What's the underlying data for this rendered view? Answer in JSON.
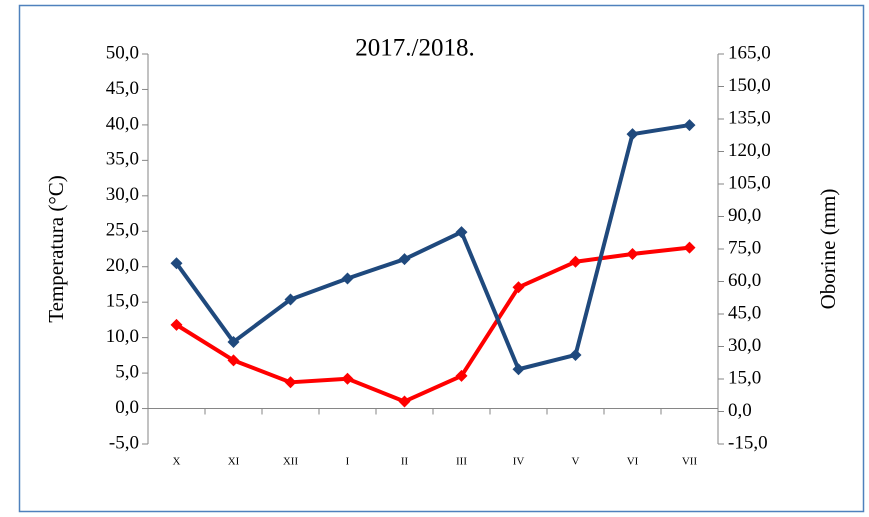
{
  "chart_data": {
    "type": "line",
    "title": "2017./2018.",
    "categories": [
      "X",
      "XI",
      "XII",
      "I",
      "II",
      "III",
      "IV",
      "V",
      "VI",
      "VII"
    ],
    "y_label": "Temperatura (°C)",
    "y2_label": "Oborine (mm)",
    "series": [
      {
        "name": "Temperatura",
        "color": "#ff0000",
        "values": [
          11.8,
          6.8,
          3.7,
          4.2,
          1.0,
          4.6,
          17.1,
          20.7,
          21.8,
          22.7
        ]
      },
      {
        "name": "Oborine",
        "color": "#1f497d",
        "axis": "y2",
        "values": [
          68.4,
          32.1,
          51.7,
          61.4,
          70.3,
          82.8,
          19.5,
          26.1,
          128.0,
          132.2
        ]
      }
    ],
    "ylim": [
      -5,
      50
    ],
    "yticks": [
      {
        "value": -5,
        "label": "-5,0"
      },
      {
        "value": 0,
        "label": "0,0"
      },
      {
        "value": 5,
        "label": "5,0"
      },
      {
        "value": 10,
        "label": "10,0"
      },
      {
        "value": 15,
        "label": "15,0"
      },
      {
        "value": 20,
        "label": "20,0"
      },
      {
        "value": 25,
        "label": "25,0"
      },
      {
        "value": 30,
        "label": "30,0"
      },
      {
        "value": 35,
        "label": "35,0"
      },
      {
        "value": 40,
        "label": "40,0"
      },
      {
        "value": 45,
        "label": "45,0"
      },
      {
        "value": 50,
        "label": "50,0"
      }
    ],
    "y2lim": [
      -15,
      165
    ],
    "y2ticks": [
      {
        "value": -15,
        "label": "-15,0"
      },
      {
        "value": 0,
        "label": "0,0"
      },
      {
        "value": 15,
        "label": "15,0"
      },
      {
        "value": 30,
        "label": "30,0"
      },
      {
        "value": 45,
        "label": "45,0"
      },
      {
        "value": 60,
        "label": "60,0"
      },
      {
        "value": 75,
        "label": "75,0"
      },
      {
        "value": 90,
        "label": "90,0"
      },
      {
        "value": 105,
        "label": "105,0"
      },
      {
        "value": 120,
        "label": "120,0"
      },
      {
        "value": 135,
        "label": "135,0"
      },
      {
        "value": 150,
        "label": "150,0"
      },
      {
        "value": 165,
        "label": "165,0"
      }
    ]
  }
}
